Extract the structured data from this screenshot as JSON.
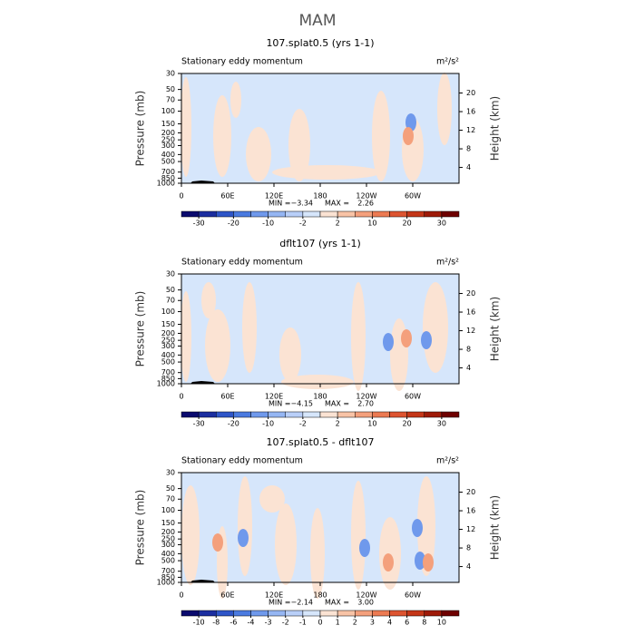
{
  "title": "MAM",
  "chart_data": [
    {
      "type": "contour",
      "title": "107.splat0.5 (yrs 1-1)",
      "subtitle": "Stationary eddy momentum",
      "units": "m²/s²",
      "ylabel": "Pressure (mb)",
      "y2label": "Height (km)",
      "xlim": [
        0,
        360
      ],
      "xticks": [
        0,
        {
          "value": 60,
          "label": "60E"
        },
        {
          "value": 120,
          "label": "120E"
        },
        180,
        {
          "value": 240,
          "label": "120W"
        },
        {
          "value": 300,
          "label": "60W"
        }
      ],
      "ylim": [
        1000,
        30
      ],
      "ylog": true,
      "yticks": [
        30,
        50,
        70,
        100,
        150,
        200,
        250,
        300,
        400,
        500,
        700,
        850,
        1000
      ],
      "y2lim": [
        0.6,
        24.2
      ],
      "y2ticks": [
        4,
        8,
        12,
        16,
        20
      ],
      "min_label": "MIN =",
      "min": {
        "value": -3.34,
        "label": "−3.34"
      },
      "max_label": "MAX =",
      "max": {
        "value": 2.26,
        "label": "2.26"
      },
      "colorbar": {
        "levels": [
          -30,
          -20,
          -10,
          -2,
          2,
          10,
          20,
          30
        ],
        "colors": [
          "#0a0a6e",
          "#1b2ea0",
          "#2e55c8",
          "#4a7ae0",
          "#6f99ec",
          "#95b6f3",
          "#b9cff8",
          "#d6e6fb",
          "#fbe3d3",
          "#f8c3a6",
          "#f4a07c",
          "#ec7a52",
          "#dd5430",
          "#c43618",
          "#9e1a08",
          "#6e0000"
        ]
      }
    },
    {
      "type": "contour",
      "title": "dflt107 (yrs 1-1)",
      "subtitle": "Stationary eddy momentum",
      "units": "m²/s²",
      "ylabel": "Pressure (mb)",
      "y2label": "Height (km)",
      "xlim": [
        0,
        360
      ],
      "xticks": [
        0,
        {
          "value": 60,
          "label": "60E"
        },
        {
          "value": 120,
          "label": "120E"
        },
        180,
        {
          "value": 240,
          "label": "120W"
        },
        {
          "value": 300,
          "label": "60W"
        }
      ],
      "ylim": [
        1000,
        30
      ],
      "ylog": true,
      "yticks": [
        30,
        50,
        70,
        100,
        150,
        200,
        250,
        300,
        400,
        500,
        700,
        850,
        1000
      ],
      "y2lim": [
        0.6,
        24.2
      ],
      "y2ticks": [
        4,
        8,
        12,
        16,
        20
      ],
      "min_label": "MIN =",
      "min": {
        "value": -4.15,
        "label": "−4.15"
      },
      "max_label": "MAX =",
      "max": {
        "value": 2.7,
        "label": "2.70"
      },
      "colorbar": {
        "levels": [
          -30,
          -20,
          -10,
          -2,
          2,
          10,
          20,
          30
        ],
        "colors": [
          "#0a0a6e",
          "#1b2ea0",
          "#2e55c8",
          "#4a7ae0",
          "#6f99ec",
          "#95b6f3",
          "#b9cff8",
          "#d6e6fb",
          "#fbe3d3",
          "#f8c3a6",
          "#f4a07c",
          "#ec7a52",
          "#dd5430",
          "#c43618",
          "#9e1a08",
          "#6e0000"
        ]
      }
    },
    {
      "type": "contour",
      "title": "107.splat0.5 - dflt107",
      "subtitle": "Stationary eddy momentum",
      "units": "m²/s²",
      "ylabel": "Pressure (mb)",
      "y2label": "Height (km)",
      "xlim": [
        0,
        360
      ],
      "xticks": [
        0,
        {
          "value": 60,
          "label": "60E"
        },
        {
          "value": 120,
          "label": "120E"
        },
        180,
        {
          "value": 240,
          "label": "120W"
        },
        {
          "value": 300,
          "label": "60W"
        }
      ],
      "ylim": [
        1000,
        30
      ],
      "ylog": true,
      "yticks": [
        30,
        50,
        70,
        100,
        150,
        200,
        250,
        300,
        400,
        500,
        700,
        850,
        1000
      ],
      "y2lim": [
        0.6,
        24.2
      ],
      "y2ticks": [
        4,
        8,
        12,
        16,
        20
      ],
      "min_label": "MIN =",
      "min": {
        "value": -2.14,
        "label": "−2.14"
      },
      "max_label": "MAX =",
      "max": {
        "value": 3,
        "label": "3.00"
      },
      "colorbar": {
        "levels": [
          -10,
          -8,
          -6,
          -4,
          -3,
          -2,
          -1,
          0,
          1,
          2,
          3,
          4,
          6,
          8,
          10
        ],
        "colors": [
          "#0a0a6e",
          "#1b2ea0",
          "#2e55c8",
          "#4a7ae0",
          "#6f99ec",
          "#95b6f3",
          "#b9cff8",
          "#d6e6fb",
          "#fbe3d3",
          "#f8c3a6",
          "#f4a07c",
          "#ec7a52",
          "#dd5430",
          "#c43618",
          "#9e1a08",
          "#6e0000"
        ]
      }
    }
  ]
}
